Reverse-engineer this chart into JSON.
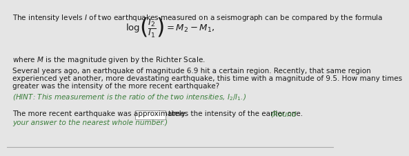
{
  "bg_color": "#e5e5e5",
  "text_color": "#1a1a1a",
  "green_color": "#3a7d3a",
  "line1": "The intensity levels $I$ of two earthquakes measured on a seismograph can be compared by the formula",
  "formula": "$\\log\\!\\left(\\dfrac{I_2}{I_1}\\right) = M_2 - M_1,$",
  "where_text": "where $M$ is the magnitude given by the Richter Scale.",
  "para2_line1": "Several years ago, an earthquake of magnitude 6.9 hit a certain region. Recently, that same region",
  "para2_line2": "experienced yet another, more devastating earthquake, this time with a magnitude of 9.5. How many times",
  "para2_line3": "greater was the intensity of the more recent earthquake?",
  "hint": "(HINT: This measurement is the ratio of the two intensities, $I_2/I_1$.)",
  "answer_pre": "The more recent earthquake was approximately",
  "answer_post": "times the intensity of the earlier one.",
  "round1": "(Round",
  "round2": "your answer to the nearest whole number.)",
  "fs_main": 7.5,
  "fs_formula": 9.5
}
